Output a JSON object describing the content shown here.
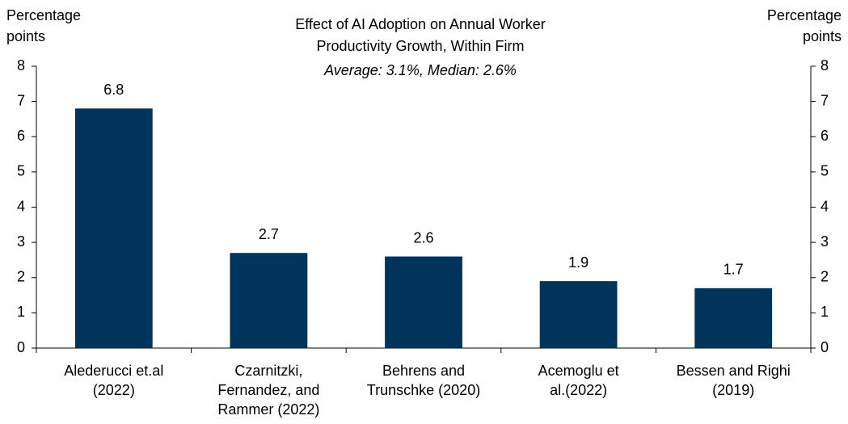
{
  "chart_data": {
    "type": "bar",
    "title": [
      "Effect of AI Adoption on Annual Worker",
      "Productivity Growth, Within Firm"
    ],
    "subtitle": "Average: 3.1%, Median: 2.6%",
    "y_label": [
      "Percentage",
      "points"
    ],
    "y2_label": [
      "Percentage",
      "points"
    ],
    "categories": [
      [
        "Alederucci et.al",
        "(2022)"
      ],
      [
        "Czarnitzki,",
        "Fernandez, and",
        "Rammer (2022)"
      ],
      [
        "Behrens and",
        "Trunschke (2020)"
      ],
      [
        "Acemoglu et",
        "al.(2022)"
      ],
      [
        "Bessen and Righi",
        "(2019)"
      ]
    ],
    "values": [
      6.8,
      2.7,
      2.6,
      1.9,
      1.7
    ],
    "color": "#00345b",
    "ylim": [
      0,
      8
    ],
    "yticks": [
      0,
      1,
      2,
      3,
      4,
      5,
      6,
      7,
      8
    ],
    "y2lim": [
      0,
      8
    ],
    "y2ticks": [
      0,
      1,
      2,
      3,
      4,
      5,
      6,
      7,
      8
    ],
    "grid": false
  }
}
